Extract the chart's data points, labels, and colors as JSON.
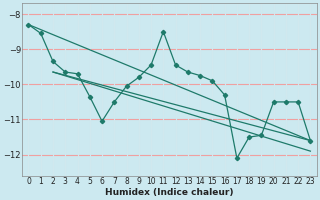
{
  "xlabel": "Humidex (Indice chaleur)",
  "bg_color": "#cce9f0",
  "grid_color_h": "#f0a0a0",
  "grid_color_v": "#d0e8ee",
  "line_color": "#1e7a6a",
  "xlim": [
    -0.5,
    23.5
  ],
  "ylim": [
    -12.6,
    -7.7
  ],
  "yticks": [
    -8,
    -9,
    -10,
    -11,
    -12
  ],
  "xticks": [
    0,
    1,
    2,
    3,
    4,
    5,
    6,
    7,
    8,
    9,
    10,
    11,
    12,
    13,
    14,
    15,
    16,
    17,
    18,
    19,
    20,
    21,
    22,
    23
  ],
  "series_main": {
    "x": [
      0,
      1,
      2,
      3,
      4,
      5,
      6,
      7,
      8,
      9,
      10,
      11,
      12,
      13,
      14,
      15,
      16,
      17,
      18,
      19,
      20,
      21,
      22,
      23
    ],
    "y": [
      -8.3,
      -8.55,
      -9.35,
      -9.65,
      -9.7,
      -10.35,
      -11.05,
      -10.5,
      -10.05,
      -9.8,
      -9.45,
      -8.5,
      -9.45,
      -9.65,
      -9.75,
      -9.9,
      -10.3,
      -12.1,
      -11.5,
      -11.45,
      -10.5,
      -10.5,
      -10.5,
      -11.6
    ]
  },
  "series_lines": [
    {
      "x": [
        0,
        23
      ],
      "y": [
        -8.3,
        -11.6
      ]
    },
    {
      "x": [
        2,
        23
      ],
      "y": [
        -9.65,
        -11.6
      ]
    },
    {
      "x": [
        2,
        23
      ],
      "y": [
        -9.65,
        -11.9
      ]
    }
  ]
}
